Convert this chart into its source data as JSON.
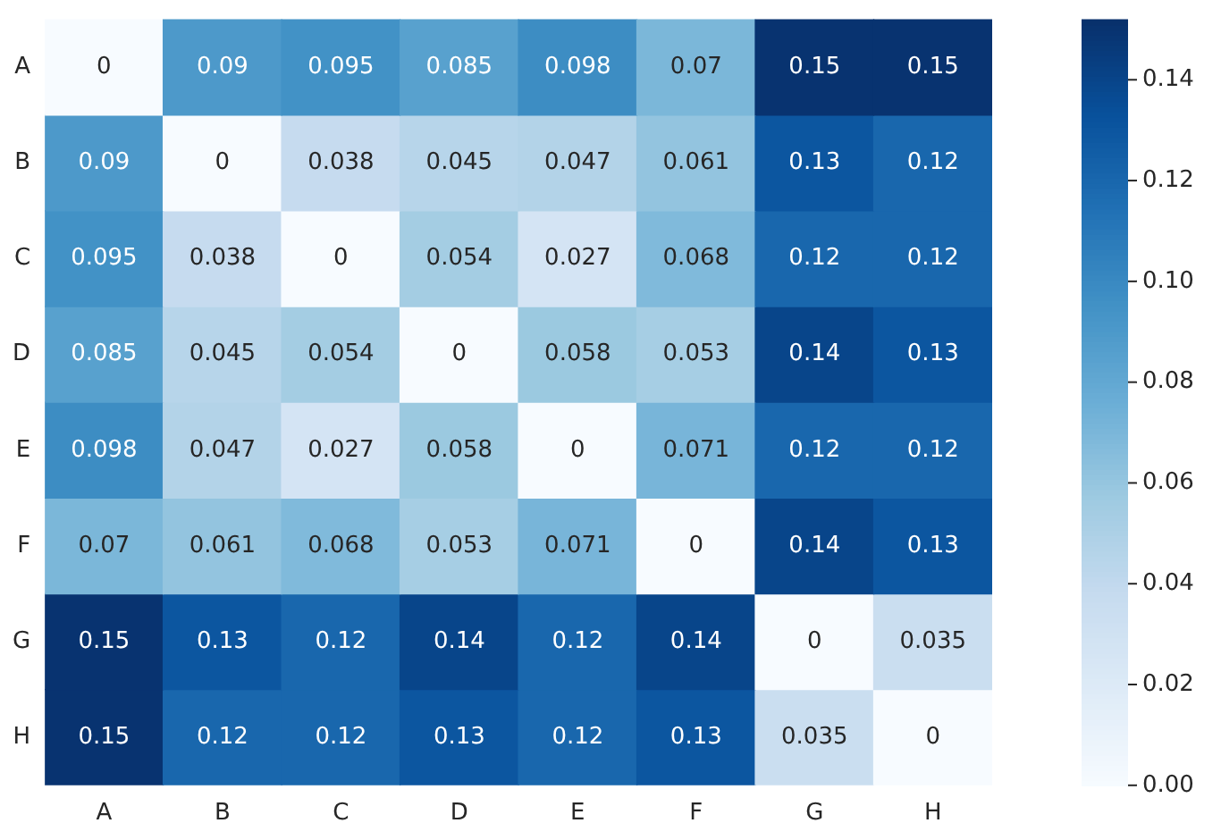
{
  "chart_data": {
    "type": "heatmap",
    "categories": [
      "A",
      "B",
      "C",
      "D",
      "E",
      "F",
      "G",
      "H"
    ],
    "y_categories": [
      "A",
      "B",
      "C",
      "D",
      "E",
      "F",
      "G",
      "H"
    ],
    "cells": [
      [
        0,
        0.09,
        0.095,
        0.085,
        0.098,
        0.07,
        0.15,
        0.15
      ],
      [
        0.09,
        0,
        0.038,
        0.045,
        0.047,
        0.061,
        0.13,
        0.12
      ],
      [
        0.095,
        0.038,
        0,
        0.054,
        0.027,
        0.068,
        0.12,
        0.12
      ],
      [
        0.085,
        0.045,
        0.054,
        0,
        0.058,
        0.053,
        0.14,
        0.13
      ],
      [
        0.098,
        0.047,
        0.027,
        0.058,
        0,
        0.071,
        0.12,
        0.12
      ],
      [
        0.07,
        0.061,
        0.068,
        0.053,
        0.071,
        0,
        0.14,
        0.13
      ],
      [
        0.15,
        0.13,
        0.12,
        0.14,
        0.12,
        0.14,
        0,
        0.035
      ],
      [
        0.15,
        0.12,
        0.12,
        0.13,
        0.12,
        0.13,
        0.035,
        0
      ]
    ],
    "clim": [
      0,
      0.152
    ],
    "cticks": [
      {
        "value": 0,
        "label": "0.00"
      },
      0.02,
      0.04,
      0.06,
      0.08,
      {
        "value": 0.1,
        "label": "0.10"
      },
      0.12,
      0.14
    ],
    "data_labels": true
  }
}
